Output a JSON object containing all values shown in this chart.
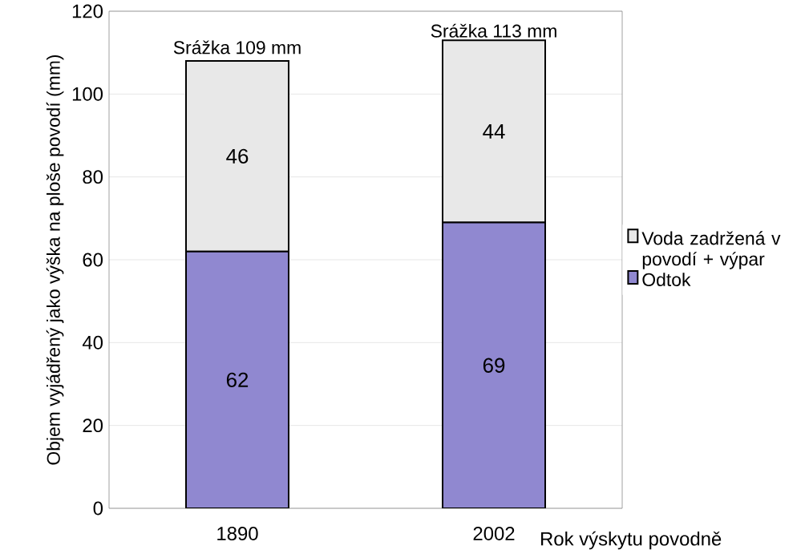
{
  "chart_data": {
    "type": "bar",
    "stacked": true,
    "ylabel": "Objem vyjádřený jako výška na ploše povodí (mm)",
    "xlabel": "Rok výskytu povodně",
    "categories": [
      "1890",
      "2002"
    ],
    "series": [
      {
        "name": "Odtok",
        "color": "#9088d0",
        "values": [
          62,
          69
        ]
      },
      {
        "name": "Voda zadržená v povodí + výpar",
        "color": "#e8e8e8",
        "values": [
          46,
          44
        ]
      }
    ],
    "ylim": [
      0,
      120
    ],
    "yticks": [
      0,
      20,
      40,
      60,
      80,
      100,
      120
    ],
    "grid": "y",
    "legend": "right",
    "data_labels": true,
    "annotations": [
      {
        "text": "Srážka 109 mm",
        "x": "1890",
        "y": 109
      },
      {
        "text": "Srážka 113 mm",
        "x": "2002",
        "y": 113
      }
    ]
  }
}
